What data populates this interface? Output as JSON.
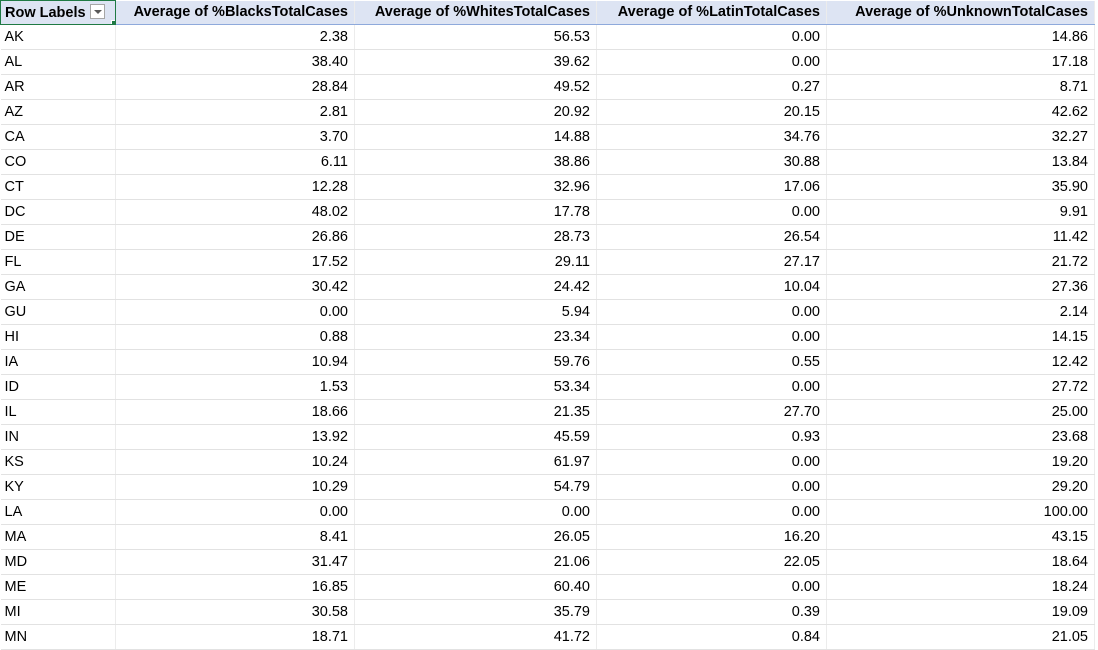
{
  "pivot": {
    "headers": [
      "Row Labels",
      "Average of %BlacksTotalCases",
      "Average of %WhitesTotalCases",
      "Average of %LatinTotalCases",
      "Average of %UnknownTotalCases"
    ],
    "rows": [
      [
        "AK",
        "2.38",
        "56.53",
        "0.00",
        "14.86"
      ],
      [
        "AL",
        "38.40",
        "39.62",
        "0.00",
        "17.18"
      ],
      [
        "AR",
        "28.84",
        "49.52",
        "0.27",
        "8.71"
      ],
      [
        "AZ",
        "2.81",
        "20.92",
        "20.15",
        "42.62"
      ],
      [
        "CA",
        "3.70",
        "14.88",
        "34.76",
        "32.27"
      ],
      [
        "CO",
        "6.11",
        "38.86",
        "30.88",
        "13.84"
      ],
      [
        "CT",
        "12.28",
        "32.96",
        "17.06",
        "35.90"
      ],
      [
        "DC",
        "48.02",
        "17.78",
        "0.00",
        "9.91"
      ],
      [
        "DE",
        "26.86",
        "28.73",
        "26.54",
        "11.42"
      ],
      [
        "FL",
        "17.52",
        "29.11",
        "27.17",
        "21.72"
      ],
      [
        "GA",
        "30.42",
        "24.42",
        "10.04",
        "27.36"
      ],
      [
        "GU",
        "0.00",
        "5.94",
        "0.00",
        "2.14"
      ],
      [
        "HI",
        "0.88",
        "23.34",
        "0.00",
        "14.15"
      ],
      [
        "IA",
        "10.94",
        "59.76",
        "0.55",
        "12.42"
      ],
      [
        "ID",
        "1.53",
        "53.34",
        "0.00",
        "27.72"
      ],
      [
        "IL",
        "18.66",
        "21.35",
        "27.70",
        "25.00"
      ],
      [
        "IN",
        "13.92",
        "45.59",
        "0.93",
        "23.68"
      ],
      [
        "KS",
        "10.24",
        "61.97",
        "0.00",
        "19.20"
      ],
      [
        "KY",
        "10.29",
        "54.79",
        "0.00",
        "29.20"
      ],
      [
        "LA",
        "0.00",
        "0.00",
        "0.00",
        "100.00"
      ],
      [
        "MA",
        "8.41",
        "26.05",
        "16.20",
        "43.15"
      ],
      [
        "MD",
        "31.47",
        "21.06",
        "22.05",
        "18.64"
      ],
      [
        "ME",
        "16.85",
        "60.40",
        "0.00",
        "18.24"
      ],
      [
        "MI",
        "30.58",
        "35.79",
        "0.39",
        "19.09"
      ],
      [
        "MN",
        "18.71",
        "41.72",
        "0.84",
        "21.05"
      ]
    ]
  }
}
